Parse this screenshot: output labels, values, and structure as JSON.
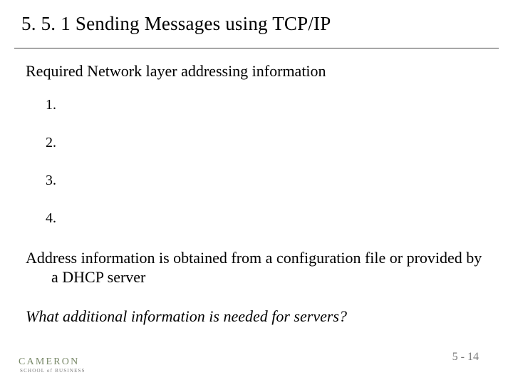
{
  "title": "5. 5. 1  Sending Messages using TCP/IP",
  "subtitle": "Required Network layer addressing information",
  "list_items": [
    "1.",
    "2.",
    "3.",
    "4."
  ],
  "paragraph": "Address information is obtained from a configuration file or provided by a DHCP server",
  "question": "What additional information is needed for servers?",
  "page_number": "5 - 14",
  "logo_main": "CAMERON",
  "logo_sub": "SCHOOL of BUSINESS",
  "colors": {
    "text": "#000000",
    "underline": "#444444",
    "page_num": "#777777",
    "logo_main": "#7a8a6a",
    "logo_sub": "#7a7a7a",
    "background": "#ffffff"
  },
  "fonts": {
    "title_size": 27,
    "body_size": 22,
    "list_size": 20,
    "pagenum_size": 16
  }
}
